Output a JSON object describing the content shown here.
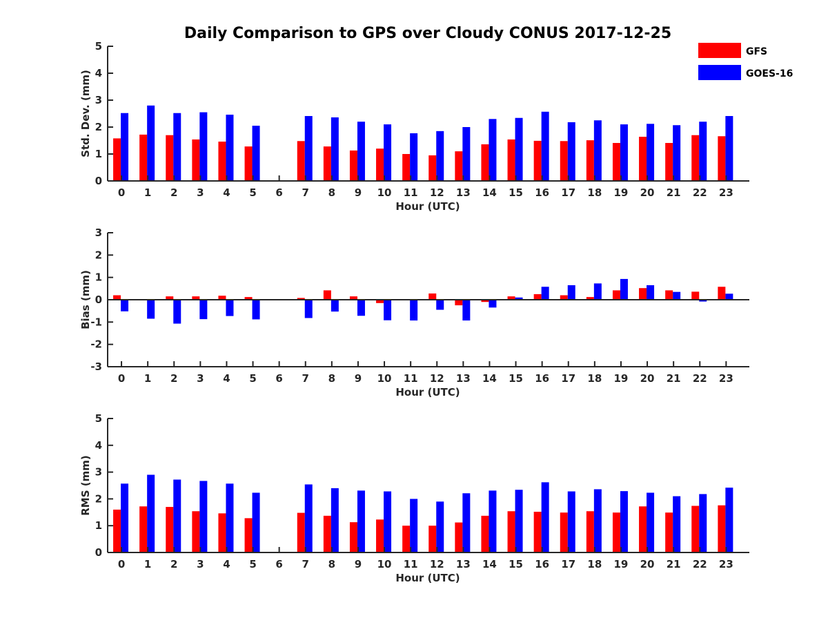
{
  "title": "Daily Comparison to GPS over Cloudy CONUS 2017-12-25",
  "legend": [
    {
      "name": "GFS",
      "color": "#ff0000"
    },
    {
      "name": "GOES-16",
      "color": "#0000ff"
    }
  ],
  "chart_data": [
    {
      "type": "bar",
      "categories": [
        "0",
        "1",
        "2",
        "3",
        "4",
        "5",
        "6",
        "7",
        "8",
        "9",
        "10",
        "11",
        "12",
        "13",
        "14",
        "15",
        "16",
        "17",
        "18",
        "19",
        "20",
        "21",
        "22",
        "23"
      ],
      "xlabel": "Hour (UTC)",
      "ylabel": "Std. Dev. (mm)",
      "ylim": [
        0,
        5
      ],
      "yticks": [
        0,
        1,
        2,
        3,
        4,
        5
      ],
      "series": [
        {
          "name": "GFS",
          "color": "#ff0000",
          "values": [
            1.58,
            1.72,
            1.7,
            1.54,
            1.46,
            1.28,
            null,
            1.48,
            1.28,
            1.13,
            1.2,
            1.0,
            0.95,
            1.1,
            1.36,
            1.54,
            1.49,
            1.48,
            1.51,
            1.41,
            1.64,
            1.41,
            1.7,
            1.66
          ]
        },
        {
          "name": "GOES-16",
          "color": "#0000ff",
          "values": [
            2.52,
            2.8,
            2.52,
            2.55,
            2.46,
            2.05,
            null,
            2.41,
            2.36,
            2.2,
            2.1,
            1.77,
            1.85,
            2.0,
            2.3,
            2.34,
            2.57,
            2.18,
            2.25,
            2.1,
            2.12,
            2.07,
            2.2,
            2.41
          ]
        }
      ],
      "legend": "top-right",
      "grid": false
    },
    {
      "type": "bar",
      "categories": [
        "0",
        "1",
        "2",
        "3",
        "4",
        "5",
        "6",
        "7",
        "8",
        "9",
        "10",
        "11",
        "12",
        "13",
        "14",
        "15",
        "16",
        "17",
        "18",
        "19",
        "20",
        "21",
        "22",
        "23"
      ],
      "xlabel": "Hour (UTC)",
      "ylabel": "Bias (mm)",
      "ylim": [
        -3,
        3
      ],
      "yticks": [
        -3,
        -2,
        -1,
        0,
        1,
        2,
        3
      ],
      "series": [
        {
          "name": "GFS",
          "color": "#ff0000",
          "values": [
            0.2,
            0.03,
            0.15,
            0.15,
            0.18,
            0.12,
            null,
            0.08,
            0.42,
            0.15,
            -0.15,
            0.0,
            0.28,
            -0.25,
            -0.1,
            0.15,
            0.25,
            0.2,
            0.12,
            0.42,
            0.52,
            0.42,
            0.36,
            0.58
          ]
        },
        {
          "name": "GOES-16",
          "color": "#0000ff",
          "values": [
            -0.52,
            -0.85,
            -1.07,
            -0.87,
            -0.73,
            -0.88,
            null,
            -0.82,
            -0.53,
            -0.72,
            -0.92,
            -0.93,
            -0.45,
            -0.93,
            -0.35,
            0.1,
            0.58,
            0.65,
            0.73,
            0.93,
            0.65,
            0.35,
            -0.08,
            0.27
          ]
        }
      ],
      "grid": false
    },
    {
      "type": "bar",
      "categories": [
        "0",
        "1",
        "2",
        "3",
        "4",
        "5",
        "6",
        "7",
        "8",
        "9",
        "10",
        "11",
        "12",
        "13",
        "14",
        "15",
        "16",
        "17",
        "18",
        "19",
        "20",
        "21",
        "22",
        "23"
      ],
      "xlabel": "Hour (UTC)",
      "ylabel": "RMS (mm)",
      "ylim": [
        0,
        5
      ],
      "yticks": [
        0,
        1,
        2,
        3,
        4,
        5
      ],
      "series": [
        {
          "name": "GFS",
          "color": "#ff0000",
          "values": [
            1.6,
            1.72,
            1.7,
            1.54,
            1.46,
            1.28,
            null,
            1.48,
            1.37,
            1.13,
            1.23,
            1.0,
            1.0,
            1.12,
            1.37,
            1.54,
            1.52,
            1.49,
            1.54,
            1.49,
            1.72,
            1.49,
            1.74,
            1.76
          ]
        },
        {
          "name": "GOES-16",
          "color": "#0000ff",
          "values": [
            2.57,
            2.9,
            2.72,
            2.67,
            2.57,
            2.23,
            null,
            2.54,
            2.4,
            2.31,
            2.28,
            2.0,
            1.9,
            2.21,
            2.31,
            2.34,
            2.62,
            2.28,
            2.36,
            2.29,
            2.23,
            2.1,
            2.18,
            2.42
          ]
        }
      ],
      "grid": false
    }
  ]
}
